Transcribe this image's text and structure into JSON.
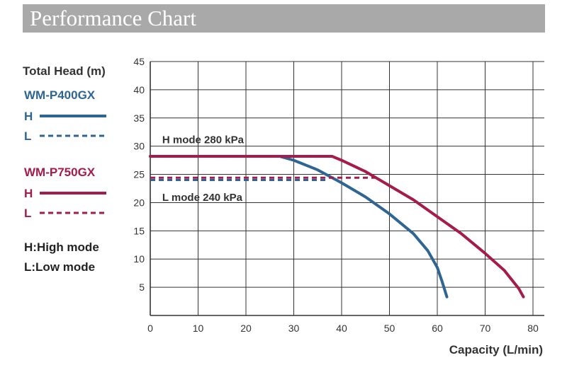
{
  "header": {
    "title": "Performance Chart"
  },
  "colors": {
    "blue": "#2e6592",
    "red": "#a51b4a",
    "grid": "#333333"
  },
  "legend": {
    "models": [
      {
        "name": "WM-P400GX",
        "color": "#2e6592",
        "h_label": "H",
        "l_label": "L"
      },
      {
        "name": "WM-P750GX",
        "color": "#a51b4a",
        "h_label": "H",
        "l_label": "L"
      }
    ],
    "notes": [
      "H:High mode",
      "L:Low mode"
    ]
  },
  "chart_data": {
    "type": "line",
    "title": "Performance Chart",
    "xlabel": "Capacity (L/min)",
    "ylabel": "Total Head (m)",
    "xlim": [
      0,
      80
    ],
    "ylim": [
      0,
      45
    ],
    "xticks": [
      0,
      10,
      20,
      30,
      40,
      50,
      60,
      70,
      80
    ],
    "yticks": [
      5,
      10,
      15,
      20,
      25,
      30,
      35,
      40,
      45
    ],
    "grid": true,
    "annotations": [
      {
        "text": "H mode 280 kPa",
        "x": 2.5,
        "y": 30.5
      },
      {
        "text": "L mode 240 kPa",
        "x": 2.5,
        "y": 20.3
      }
    ],
    "series": [
      {
        "name": "WM-P400GX H",
        "color": "#2e6592",
        "style": "solid",
        "x": [
          0,
          27,
          30,
          35,
          40,
          45,
          50,
          55,
          58,
          60,
          61,
          62
        ],
        "y": [
          28.2,
          28.2,
          27.5,
          25.8,
          23.5,
          21.0,
          18.0,
          14.5,
          11.5,
          8.5,
          6.0,
          3.3
        ]
      },
      {
        "name": "WM-P400GX L",
        "color": "#2e6592",
        "style": "dashed",
        "x": [
          0,
          37
        ],
        "y": [
          24.0,
          24.0
        ]
      },
      {
        "name": "WM-P750GX H",
        "color": "#a51b4a",
        "style": "solid",
        "x": [
          0,
          38,
          40,
          45,
          50,
          55,
          60,
          65,
          70,
          74,
          77,
          78
        ],
        "y": [
          28.2,
          28.2,
          27.5,
          25.5,
          23.0,
          20.5,
          17.5,
          14.5,
          11.0,
          8.0,
          4.8,
          3.3
        ]
      },
      {
        "name": "WM-P750GX L",
        "color": "#a51b4a",
        "style": "dashed",
        "x": [
          0,
          48
        ],
        "y": [
          24.4,
          24.4
        ]
      }
    ]
  }
}
